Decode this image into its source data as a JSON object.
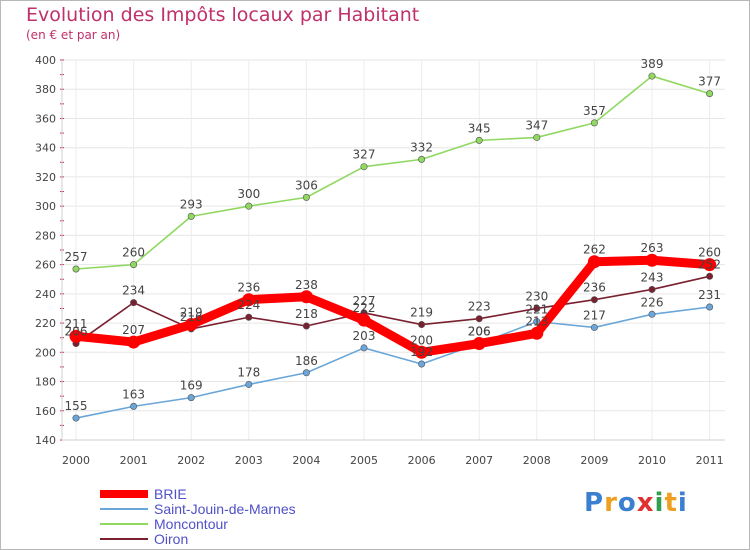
{
  "chart_data": {
    "type": "line",
    "title": "Evolution des Impôts locaux par Habitant",
    "subtitle": "(en € et par an)",
    "categories": [
      "2000",
      "2001",
      "2002",
      "2003",
      "2004",
      "2005",
      "2006",
      "2007",
      "2008",
      "2009",
      "2010",
      "2011"
    ],
    "ylim": [
      140,
      400
    ],
    "yticks": [
      140,
      160,
      180,
      200,
      220,
      240,
      260,
      280,
      300,
      320,
      340,
      360,
      380,
      400
    ],
    "grid": true,
    "legend_position": "bottom-left",
    "series": [
      {
        "name": "Moncontour",
        "color": "#90d860",
        "values": [
          257,
          260,
          293,
          300,
          306,
          327,
          332,
          345,
          347,
          357,
          389,
          377
        ],
        "labels": [
          "257",
          "260",
          "293",
          "300",
          "306",
          "327",
          "332",
          "345",
          "347",
          "357",
          "389",
          "377"
        ]
      },
      {
        "name": "Saint-Jouin-de-Marnes",
        "color": "#6aa6d8",
        "values": [
          155,
          163,
          169,
          178,
          186,
          203,
          192,
          206,
          221,
          217,
          226,
          231
        ],
        "labels": [
          "155",
          "163",
          "169",
          "178",
          "186",
          "203",
          "192",
          "206",
          "221",
          "217",
          "226",
          "231"
        ]
      },
      {
        "name": "Oiron",
        "color": "#7a2030",
        "values": [
          206,
          234,
          216,
          224,
          218,
          227,
          219,
          223,
          230,
          236,
          243,
          252
        ],
        "labels": [
          "206",
          "234",
          "216",
          "224",
          "218",
          "227",
          "219",
          "223",
          "230",
          "236",
          "243",
          "252"
        ]
      },
      {
        "name": "BRIE",
        "color": "#ff0000",
        "values": [
          211,
          207,
          219,
          236,
          238,
          222,
          200,
          206,
          213,
          262,
          263,
          260
        ],
        "labels": [
          "211",
          "207",
          "219",
          "236",
          "238",
          "222",
          "200",
          "206",
          "213",
          "262",
          "263",
          "260"
        ]
      }
    ]
  },
  "legend": [
    {
      "name": "BRIE",
      "color": "#ff0000",
      "thickness": 8
    },
    {
      "name": "Saint-Jouin-de-Marnes",
      "color": "#6aa6d8",
      "thickness": 2
    },
    {
      "name": "Moncontour",
      "color": "#90d860",
      "thickness": 2
    },
    {
      "name": "Oiron",
      "color": "#7a2030",
      "thickness": 2
    }
  ],
  "logo": {
    "letters": [
      "P",
      "r",
      "o",
      "x",
      "i",
      "t",
      "i"
    ],
    "colors": [
      "#3a7fd0",
      "#f0a020",
      "#3a7fd0",
      "#e03030",
      "#30a050",
      "#f0a020",
      "#3a7fd0"
    ]
  }
}
